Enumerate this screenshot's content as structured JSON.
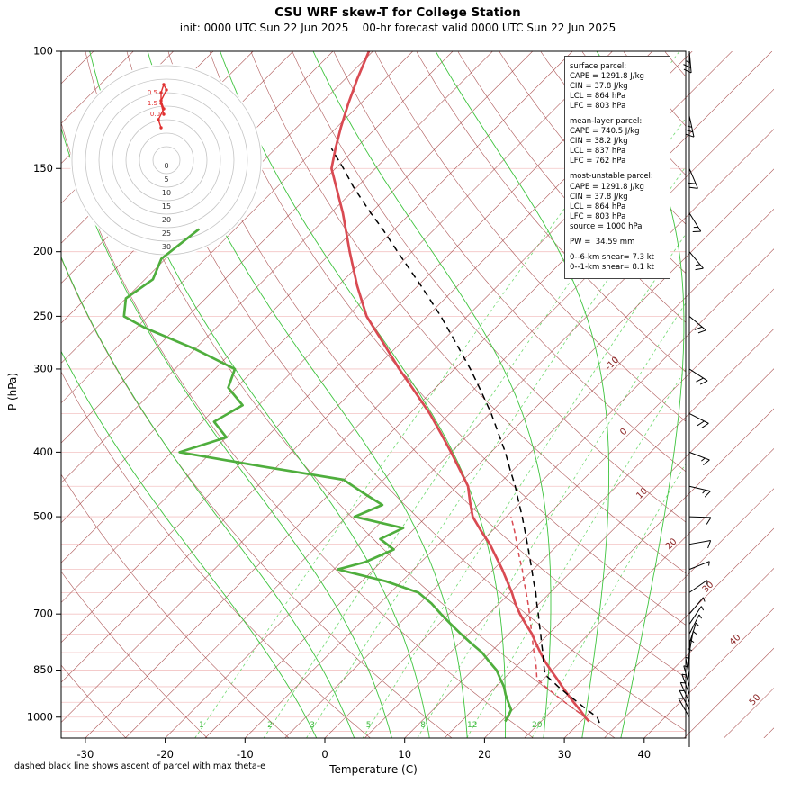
{
  "title": "CSU WRF skew-T for College Station",
  "subtitle": "init: 0000 UTC Sun 22 Jun 2025    00-hr forecast valid 0000 UTC Sun 22 Jun 2025",
  "footnote": "dashed black line shows ascent of parcel with max theta-e",
  "axes": {
    "x_label": "Temperature (C)",
    "y_label": "P (hPa)",
    "x_ticks": [
      -30,
      -20,
      -10,
      0,
      10,
      20,
      30,
      40
    ],
    "p_ticks": [
      100,
      150,
      200,
      250,
      300,
      400,
      500,
      700,
      850,
      1000
    ]
  },
  "isotherm_labels": [
    -10,
    0,
    10,
    20,
    30,
    40,
    50
  ],
  "mixing_ratio_labels": [
    1,
    2,
    3,
    5,
    8,
    12,
    20
  ],
  "colors": {
    "temperature": "#d94a52",
    "dewpoint": "#4fae3d",
    "parcel": "#000000",
    "mean_layer_parcel": "#d94a52",
    "isotherm": "#a03c3c",
    "isotherm_label": "#8b2525",
    "moist_adiabat": "#3ec43e",
    "mixing_ratio": "#6fd96f",
    "mixing_ratio_label": "#3dbb3d",
    "pressure_line": "#f3c3c3",
    "hodograph_ring": "#c4c4c4",
    "hodograph_trace": "#e03030"
  },
  "info_box": {
    "lines": [
      "surface parcel:",
      "CAPE = 1291.8 J/kg",
      "CIN = 37.8 J/kg",
      "LCL = 864 hPa",
      "LFC = 803 hPa",
      "",
      "mean-layer parcel:",
      "CAPE = 740.5 J/kg",
      "CIN = 38.2 J/kg",
      "LCL = 837 hPa",
      "LFC = 762 hPa",
      "",
      "most-unstable parcel:",
      "CAPE = 1291.8 J/kg",
      "CIN = 37.8 J/kg",
      "LCL = 864 hPa",
      "LFC = 803 hPa",
      "source = 1000 hPa",
      "",
      "PW =  34.59 mm",
      "",
      "0--6-km shear= 7.3 kt",
      "0--1-km shear= 8.1 kt"
    ]
  },
  "hodograph": {
    "rings": [
      5,
      10,
      15,
      20,
      25,
      30,
      35
    ],
    "ring_labels": [
      0,
      5,
      10,
      15,
      20,
      25,
      30
    ],
    "units": "kt",
    "trace_uv_kt": [
      [
        -1,
        17
      ],
      [
        -2,
        21
      ],
      [
        -2,
        25
      ],
      [
        -1,
        28
      ],
      [
        0,
        26
      ],
      [
        -2,
        22
      ],
      [
        -1,
        19
      ],
      [
        -3,
        15
      ],
      [
        -2,
        12
      ]
    ],
    "point_labels": [
      {
        "text": "0.5",
        "u": -2,
        "v": 25
      },
      {
        "text": "1.5",
        "u": -2,
        "v": 21
      },
      {
        "text": "0.0",
        "u": -1,
        "v": 17
      }
    ]
  },
  "chart_data": {
    "type": "line",
    "title": "CSU WRF skew-T for College Station",
    "xlabel": "Temperature (C)",
    "ylabel": "P (hPa)",
    "x_range": [
      -35,
      45
    ],
    "p_range": [
      100,
      1050
    ],
    "grid": "skew-t log-p",
    "legend_position": "none",
    "background": {
      "isotherms_c": {
        "min": -120,
        "max": 55,
        "step": 5
      },
      "dry_adiabats_c": {
        "min": -30,
        "max": 170,
        "step": 10
      },
      "moist_adiabats_c": [
        -5,
        0,
        5,
        10,
        15,
        20,
        25,
        30,
        35
      ],
      "mixing_ratio_gkg": [
        1,
        2,
        3,
        5,
        8,
        12,
        20
      ],
      "pressure_lines_hpa": {
        "min": 100,
        "max": 1050,
        "step": 50
      }
    },
    "series": [
      {
        "name": "temperature",
        "style": "solid",
        "color": "#d94a52",
        "points": [
          [
            1015,
            31
          ],
          [
            1000,
            30
          ],
          [
            975,
            28.4
          ],
          [
            950,
            26.7
          ],
          [
            925,
            25
          ],
          [
            900,
            23.3
          ],
          [
            875,
            21.6
          ],
          [
            850,
            19.8
          ],
          [
            825,
            18
          ],
          [
            800,
            16.3
          ],
          [
            775,
            14.6
          ],
          [
            750,
            12.9
          ],
          [
            725,
            10.9
          ],
          [
            700,
            8.9
          ],
          [
            675,
            7
          ],
          [
            650,
            5.2
          ],
          [
            625,
            3.2
          ],
          [
            600,
            1.1
          ],
          [
            575,
            -1.2
          ],
          [
            550,
            -3.6
          ],
          [
            525,
            -6.4
          ],
          [
            500,
            -9.2
          ],
          [
            475,
            -11.4
          ],
          [
            450,
            -13.6
          ],
          [
            425,
            -16.7
          ],
          [
            400,
            -20
          ],
          [
            375,
            -23.6
          ],
          [
            350,
            -27.5
          ],
          [
            325,
            -32
          ],
          [
            300,
            -36.9
          ],
          [
            275,
            -42
          ],
          [
            250,
            -47.6
          ],
          [
            225,
            -52.6
          ],
          [
            200,
            -57.8
          ],
          [
            175,
            -63.5
          ],
          [
            150,
            -70.5
          ],
          [
            140,
            -72.5
          ],
          [
            130,
            -74.5
          ],
          [
            120,
            -76.5
          ],
          [
            110,
            -78.5
          ],
          [
            100,
            -80.5
          ]
        ]
      },
      {
        "name": "dewpoint",
        "style": "solid",
        "color": "#4fae3d",
        "points": [
          [
            1015,
            20.5
          ],
          [
            1000,
            20.3
          ],
          [
            975,
            19.8
          ],
          [
            950,
            18.5
          ],
          [
            925,
            17.2
          ],
          [
            900,
            16
          ],
          [
            875,
            14.5
          ],
          [
            850,
            13
          ],
          [
            825,
            11
          ],
          [
            800,
            9
          ],
          [
            775,
            6.5
          ],
          [
            750,
            4
          ],
          [
            725,
            1.5
          ],
          [
            700,
            -1
          ],
          [
            675,
            -3.5
          ],
          [
            650,
            -6.5
          ],
          [
            625,
            -12
          ],
          [
            600,
            -19.5
          ],
          [
            585,
            -17
          ],
          [
            560,
            -15
          ],
          [
            540,
            -18
          ],
          [
            520,
            -16.5
          ],
          [
            500,
            -24
          ],
          [
            480,
            -22
          ],
          [
            460,
            -26
          ],
          [
            440,
            -30
          ],
          [
            420,
            -42
          ],
          [
            400,
            -54
          ],
          [
            380,
            -50
          ],
          [
            360,
            -53.5
          ],
          [
            340,
            -52
          ],
          [
            320,
            -56
          ],
          [
            300,
            -57.5
          ],
          [
            280,
            -65
          ],
          [
            260,
            -74
          ],
          [
            250,
            -78
          ],
          [
            235,
            -80
          ],
          [
            220,
            -79
          ],
          [
            205,
            -80.5
          ],
          [
            185,
            -79.5
          ]
        ]
      },
      {
        "name": "parcel_max_thetae",
        "style": "dashed",
        "color": "#000000",
        "points": [
          [
            1020,
            32.5
          ],
          [
            1000,
            31.5
          ],
          [
            975,
            29.3
          ],
          [
            950,
            27.2
          ],
          [
            925,
            25
          ],
          [
            900,
            22.8
          ],
          [
            880,
            21.1
          ],
          [
            864,
            19.7
          ],
          [
            850,
            19
          ],
          [
            825,
            17.8
          ],
          [
            800,
            16.6
          ],
          [
            775,
            15.3
          ],
          [
            750,
            14
          ],
          [
            725,
            12.6
          ],
          [
            700,
            11.2
          ],
          [
            675,
            9.7
          ],
          [
            650,
            8.2
          ],
          [
            625,
            6.5
          ],
          [
            600,
            4.8
          ],
          [
            575,
            3
          ],
          [
            550,
            1.1
          ],
          [
            525,
            -0.9
          ],
          [
            500,
            -3
          ],
          [
            475,
            -5.3
          ],
          [
            450,
            -7.7
          ],
          [
            425,
            -10.4
          ],
          [
            400,
            -13.2
          ],
          [
            375,
            -16.4
          ],
          [
            350,
            -19.8
          ],
          [
            325,
            -23.7
          ],
          [
            300,
            -28
          ],
          [
            275,
            -32.9
          ],
          [
            250,
            -38.3
          ],
          [
            225,
            -44.6
          ],
          [
            200,
            -51.8
          ],
          [
            185,
            -56.5
          ],
          [
            175,
            -60
          ],
          [
            160,
            -65.4
          ],
          [
            150,
            -69
          ],
          [
            140,
            -73
          ]
        ]
      },
      {
        "name": "mean_layer_parcel",
        "style": "dashed",
        "color": "#d94a52",
        "points": [
          [
            1005,
            30.2
          ],
          [
            1000,
            30
          ],
          [
            975,
            27.8
          ],
          [
            950,
            25.6
          ],
          [
            925,
            23.4
          ],
          [
            900,
            21.2
          ],
          [
            875,
            19.1
          ],
          [
            850,
            18
          ],
          [
            837,
            17.4
          ],
          [
            825,
            16.8
          ],
          [
            800,
            15.5
          ],
          [
            775,
            14.2
          ],
          [
            750,
            12.9
          ],
          [
            725,
            11.5
          ],
          [
            700,
            10.1
          ],
          [
            675,
            8.6
          ],
          [
            650,
            7
          ],
          [
            625,
            5.3
          ],
          [
            600,
            3.6
          ],
          [
            575,
            1.7
          ],
          [
            550,
            -0.2
          ],
          [
            525,
            -2.2
          ],
          [
            500,
            -4.4
          ]
        ]
      }
    ],
    "wind_barbs_p_kt_dirfrom": [
      [
        1000,
        5,
        150
      ],
      [
        975,
        5,
        153
      ],
      [
        950,
        6,
        156
      ],
      [
        925,
        6,
        160
      ],
      [
        900,
        7,
        165
      ],
      [
        875,
        7,
        170
      ],
      [
        850,
        8,
        176
      ],
      [
        825,
        8,
        182
      ],
      [
        800,
        7,
        190
      ],
      [
        775,
        7,
        198
      ],
      [
        750,
        6,
        207
      ],
      [
        725,
        6,
        214
      ],
      [
        700,
        6,
        220
      ],
      [
        650,
        7,
        235
      ],
      [
        600,
        9,
        248
      ],
      [
        550,
        10,
        260
      ],
      [
        500,
        12,
        272
      ],
      [
        450,
        15,
        283
      ],
      [
        400,
        18,
        291
      ],
      [
        350,
        21,
        297
      ],
      [
        300,
        23,
        303
      ],
      [
        250,
        21,
        310
      ],
      [
        200,
        17,
        320
      ],
      [
        175,
        19,
        328
      ],
      [
        150,
        22,
        337
      ],
      [
        125,
        26,
        348
      ],
      [
        100,
        28,
        355
      ]
    ]
  }
}
